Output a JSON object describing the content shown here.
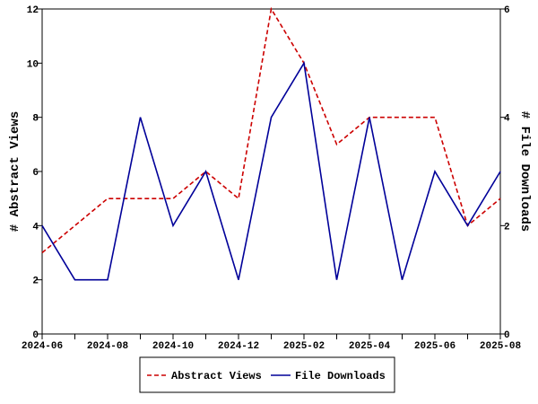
{
  "chart_data": {
    "type": "line",
    "categories": [
      "2024-06",
      null,
      "2024-08",
      null,
      "2024-10",
      null,
      "2024-12",
      null,
      "2025-02",
      null,
      "2025-04",
      null,
      "2025-06",
      null,
      "2025-08"
    ],
    "series": [
      {
        "name": "Abstract Views",
        "color": "#cc0000",
        "dash": true,
        "values": [
          3,
          4,
          5,
          5,
          5,
          6,
          5,
          12,
          10,
          7,
          8,
          8,
          8,
          4,
          5
        ]
      },
      {
        "name": "File Downloads",
        "color": "#000099",
        "dash": false,
        "axis": "y2",
        "values": [
          2,
          1,
          1,
          4,
          2,
          3,
          1,
          4,
          5,
          1,
          4,
          1,
          3,
          2,
          3
        ]
      }
    ],
    "ylabel": "# Abstract Views",
    "y2label": "# File Downloads",
    "ylim": [
      0,
      12
    ],
    "yticks": [
      0,
      2,
      4,
      6,
      8,
      10,
      12
    ],
    "y2lim": [
      0,
      6
    ],
    "y2ticks": [
      0,
      2,
      4,
      6
    ],
    "legend": "bottom"
  }
}
